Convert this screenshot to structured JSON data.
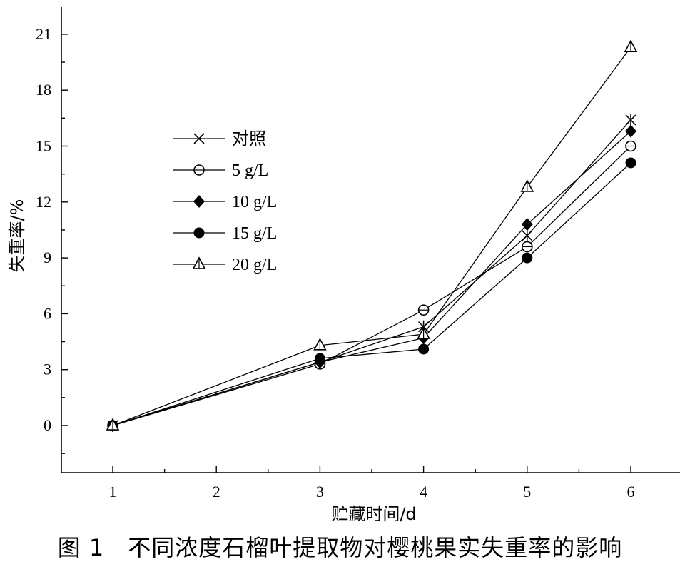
{
  "caption": "图 1　不同浓度石榴叶提取物对樱桃果实失重率的影响",
  "chart_data": {
    "type": "line",
    "xlabel": "贮藏时间/d",
    "ylabel": "失重率/%",
    "x_ticks": [
      "1",
      "2",
      "3",
      "4",
      "5",
      "6"
    ],
    "y_ticks": [
      "0",
      "3",
      "6",
      "9",
      "12",
      "15",
      "18",
      "21"
    ],
    "ylim": [
      -2.6,
      22.5
    ],
    "xlim": [
      0.5,
      7.5
    ],
    "grid": false,
    "legend_position": "upper-left",
    "x": [
      1,
      3,
      4,
      5,
      6
    ],
    "series": [
      {
        "name": "对照",
        "marker": "asterisk",
        "values": [
          0,
          3.4,
          5.3,
          10.2,
          16.4
        ]
      },
      {
        "name": "5 g/L",
        "marker": "circle-open",
        "values": [
          0,
          3.3,
          6.2,
          9.6,
          15.0
        ]
      },
      {
        "name": "10 g/L",
        "marker": "diamond-filled",
        "values": [
          0,
          3.4,
          4.7,
          10.8,
          15.8
        ]
      },
      {
        "name": "15 g/L",
        "marker": "circle-filled",
        "values": [
          0,
          3.6,
          4.1,
          9.0,
          14.1
        ]
      },
      {
        "name": "20 g/L",
        "marker": "triangle-open",
        "values": [
          0,
          4.3,
          4.9,
          12.8,
          20.3
        ]
      }
    ],
    "legend_markers": [
      "cross",
      "circle-open",
      "diamond-filled",
      "circle-filled",
      "triangle-open"
    ]
  }
}
